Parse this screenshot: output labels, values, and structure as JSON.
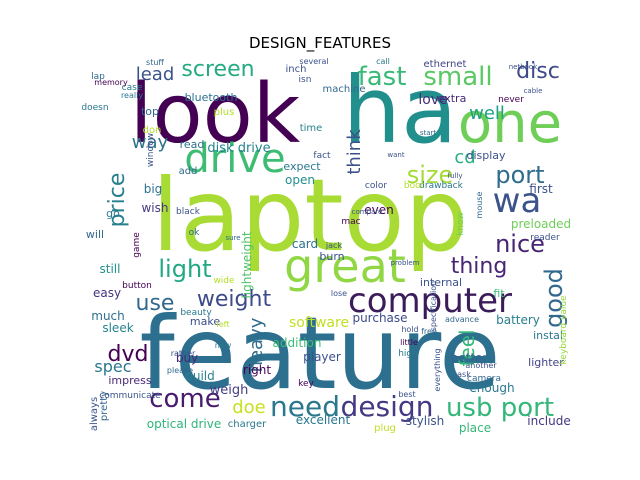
{
  "chart_data": {
    "type": "wordcloud",
    "title": "DESIGN_FEATURES",
    "words": [
      {
        "text": "feature",
        "color": "#2c6f8e"
      },
      {
        "text": "laptop",
        "color": "#a8db34"
      },
      {
        "text": "look",
        "color": "#440154"
      },
      {
        "text": "ha",
        "color": "#21908d"
      },
      {
        "text": "one",
        "color": "#6ece58"
      },
      {
        "text": "great",
        "color": "#90d743"
      },
      {
        "text": "drive",
        "color": "#3dbc74"
      },
      {
        "text": "computer",
        "color": "#3b1c5a"
      },
      {
        "text": "wa",
        "color": "#3b528b"
      },
      {
        "text": "design",
        "color": "#443983"
      },
      {
        "text": "usb port",
        "color": "#35b779"
      },
      {
        "text": "need",
        "color": "#2a788e"
      },
      {
        "text": "come",
        "color": "#481b6d"
      },
      {
        "text": "fast",
        "color": "#38b977"
      },
      {
        "text": "small",
        "color": "#5ac864"
      },
      {
        "text": "screen",
        "color": "#25ab82"
      },
      {
        "text": "disc",
        "color": "#3e4989"
      },
      {
        "text": "size",
        "color": "#a5db36"
      },
      {
        "text": "port",
        "color": "#2f6c8e"
      },
      {
        "text": "nice",
        "color": "#482475"
      },
      {
        "text": "good",
        "color": "#30688e"
      },
      {
        "text": "light",
        "color": "#22a884"
      },
      {
        "text": "use",
        "color": "#31688e"
      },
      {
        "text": "weight",
        "color": "#3e4a89"
      },
      {
        "text": "price",
        "color": "#27808e"
      },
      {
        "text": "thing",
        "color": "#482576"
      },
      {
        "text": "dvd",
        "color": "#440154"
      },
      {
        "text": "feel",
        "color": "#35b779"
      },
      {
        "text": "lead",
        "color": "#3a538b"
      },
      {
        "text": "way",
        "color": "#2c728e"
      },
      {
        "text": "well",
        "color": "#1fa187"
      },
      {
        "text": "think",
        "color": "#3b528b"
      },
      {
        "text": "love",
        "color": "#472c7a"
      },
      {
        "text": "cd",
        "color": "#2ab07f"
      },
      {
        "text": "heavy",
        "color": "#2f6c8e"
      },
      {
        "text": "doe",
        "color": "#c8e020"
      },
      {
        "text": "software",
        "color": "#c2df23"
      },
      {
        "text": "spec",
        "color": "#2a778e"
      },
      {
        "text": "weigh",
        "color": "#433e85"
      },
      {
        "text": "battery",
        "color": "#27808e"
      },
      {
        "text": "disk drive",
        "color": "#25838e"
      },
      {
        "text": "bluetooth",
        "color": "#2c718e"
      },
      {
        "text": "lightweight",
        "color": "#4ec36b"
      },
      {
        "text": "card",
        "color": "#2e6e8e"
      },
      {
        "text": "player",
        "color": "#3b518b"
      },
      {
        "text": "sleek",
        "color": "#26828e"
      },
      {
        "text": "purchase",
        "color": "#3e4989"
      },
      {
        "text": "optical drive",
        "color": "#2eb37c"
      },
      {
        "text": "excellent",
        "color": "#2a778e"
      },
      {
        "text": "stylish",
        "color": "#3b528b"
      },
      {
        "text": "place",
        "color": "#35b779"
      },
      {
        "text": "include",
        "color": "#453781"
      },
      {
        "text": "plug",
        "color": "#c2df23"
      },
      {
        "text": "first",
        "color": "#3b528b"
      },
      {
        "text": "easy",
        "color": "#46337e"
      },
      {
        "text": "still",
        "color": "#21918c"
      },
      {
        "text": "much",
        "color": "#2d708e"
      },
      {
        "text": "make",
        "color": "#3d4e8a"
      },
      {
        "text": "buy",
        "color": "#482878"
      },
      {
        "text": "build",
        "color": "#26828e"
      },
      {
        "text": "right",
        "color": "#440154"
      },
      {
        "text": "addition",
        "color": "#3dbc74"
      },
      {
        "text": "better",
        "color": "#31688e"
      },
      {
        "text": "lighter",
        "color": "#414487"
      },
      {
        "text": "enough",
        "color": "#2a788e"
      },
      {
        "text": "internal",
        "color": "#3b528b"
      },
      {
        "text": "instal",
        "color": "#2a788e"
      },
      {
        "text": "fit",
        "color": "#3dbc74"
      },
      {
        "text": "keyboard value",
        "color": "#95d840"
      },
      {
        "text": "wish",
        "color": "#453781"
      },
      {
        "text": "big",
        "color": "#2c718e"
      },
      {
        "text": "open",
        "color": "#228d8d"
      },
      {
        "text": "expect",
        "color": "#2a788e"
      },
      {
        "text": "display",
        "color": "#3b528b"
      },
      {
        "text": "ethernet",
        "color": "#414487"
      },
      {
        "text": "inch",
        "color": "#3b528b"
      },
      {
        "text": "machine",
        "color": "#31688e"
      },
      {
        "text": "preloaded",
        "color": "#6ece58"
      },
      {
        "text": "even",
        "color": "#440154"
      },
      {
        "text": "burn",
        "color": "#3b528b"
      },
      {
        "text": "time",
        "color": "#26828e"
      },
      {
        "text": "extra",
        "color": "#482878"
      },
      {
        "text": "never",
        "color": "#440154"
      },
      {
        "text": "top",
        "color": "#31688e"
      },
      {
        "text": "plus",
        "color": "#b5de2b"
      },
      {
        "text": "read",
        "color": "#2c718e"
      },
      {
        "text": "add",
        "color": "#31688e"
      },
      {
        "text": "fact",
        "color": "#3b528b"
      },
      {
        "text": "charger",
        "color": "#2a788e"
      },
      {
        "text": "impress",
        "color": "#482878"
      },
      {
        "text": "pretty",
        "color": "#31688e"
      },
      {
        "text": "always",
        "color": "#3b528b"
      },
      {
        "text": "communicate",
        "color": "#3b528b"
      },
      {
        "text": "button",
        "color": "#440154"
      },
      {
        "text": "beauty",
        "color": "#2a788e"
      },
      {
        "text": "will",
        "color": "#31688e"
      },
      {
        "text": "wide",
        "color": "#b5de2b"
      },
      {
        "text": "mac",
        "color": "#440154"
      },
      {
        "text": "know",
        "color": "#6ece58"
      },
      {
        "text": "reader",
        "color": "#3b528b"
      },
      {
        "text": "camera",
        "color": "#31688e"
      },
      {
        "text": "high",
        "color": "#2a788e"
      },
      {
        "text": "key",
        "color": "#440154"
      },
      {
        "text": "drawback",
        "color": "#2a788e"
      },
      {
        "text": "boot",
        "color": "#b5de2b"
      },
      {
        "text": "color",
        "color": "#3b528b"
      },
      {
        "text": "several",
        "color": "#3b528b"
      },
      {
        "text": "call",
        "color": "#2a788e"
      },
      {
        "text": "stuff",
        "color": "#31688e"
      },
      {
        "text": "lap",
        "color": "#31688e"
      },
      {
        "text": "case",
        "color": "#2a788e"
      },
      {
        "text": "window",
        "color": "#3b528b"
      },
      {
        "text": "game",
        "color": "#440154"
      },
      {
        "text": "doesn",
        "color": "#2a788e"
      },
      {
        "text": "isn",
        "color": "#3b528b"
      },
      {
        "text": "memory",
        "color": "#440154"
      },
      {
        "text": "really",
        "color": "#2a788e"
      },
      {
        "text": "left",
        "color": "#b5de2b"
      },
      {
        "text": "ok",
        "color": "#31688e"
      },
      {
        "text": "black",
        "color": "#3b528b"
      },
      {
        "text": "free",
        "color": "#31688e"
      },
      {
        "text": "hold",
        "color": "#3b528b"
      },
      {
        "text": "little",
        "color": "#440154"
      },
      {
        "text": "ask",
        "color": "#3b528b"
      },
      {
        "text": "rather",
        "color": "#3b528b"
      },
      {
        "text": "please",
        "color": "#31688e"
      },
      {
        "text": "now",
        "color": "#2a788e"
      },
      {
        "text": "jack",
        "color": "#3b528b"
      },
      {
        "text": "advance",
        "color": "#31688e"
      },
      {
        "text": "another",
        "color": "#3b528b"
      },
      {
        "text": "everything",
        "color": "#3b528b"
      },
      {
        "text": "go",
        "color": "#2a788e"
      },
      {
        "text": "mouse",
        "color": "#31688e"
      },
      {
        "text": "lose",
        "color": "#3b528b"
      },
      {
        "text": "fully",
        "color": "#3b528b"
      },
      {
        "text": "start",
        "color": "#31688e"
      },
      {
        "text": "want",
        "color": "#3b528b"
      },
      {
        "text": "best",
        "color": "#3b528b"
      },
      {
        "text": "compare",
        "color": "#3b528b"
      },
      {
        "text": "sure",
        "color": "#31688e"
      },
      {
        "text": "don",
        "color": "#b5de2b"
      },
      {
        "text": "problem",
        "color": "#3b528b"
      },
      {
        "text": "netbook",
        "color": "#3b528b"
      },
      {
        "text": "cable",
        "color": "#3b528b"
      },
      {
        "text": "specification",
        "color": "#3b528b"
      }
    ]
  }
}
